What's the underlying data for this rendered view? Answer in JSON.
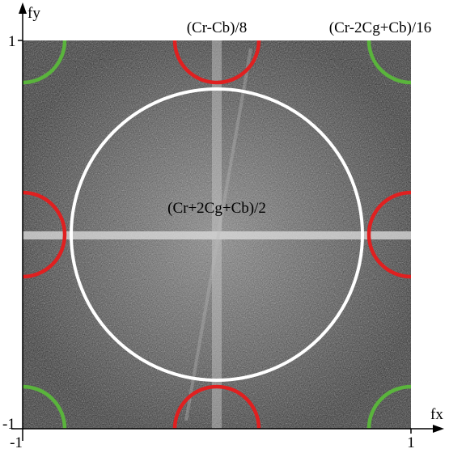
{
  "axes": {
    "x_label": "fx",
    "y_label": "fy",
    "x_ticks": [
      "-1",
      "1"
    ],
    "y_ticks": [
      "1",
      "-1"
    ]
  },
  "regions": [
    {
      "label": "(Cr+2Cg+Cb)/2"
    },
    {
      "label": "(Cr-Cb)/8"
    },
    {
      "label": "(Cr-2Cg+Cb)/16"
    }
  ]
}
